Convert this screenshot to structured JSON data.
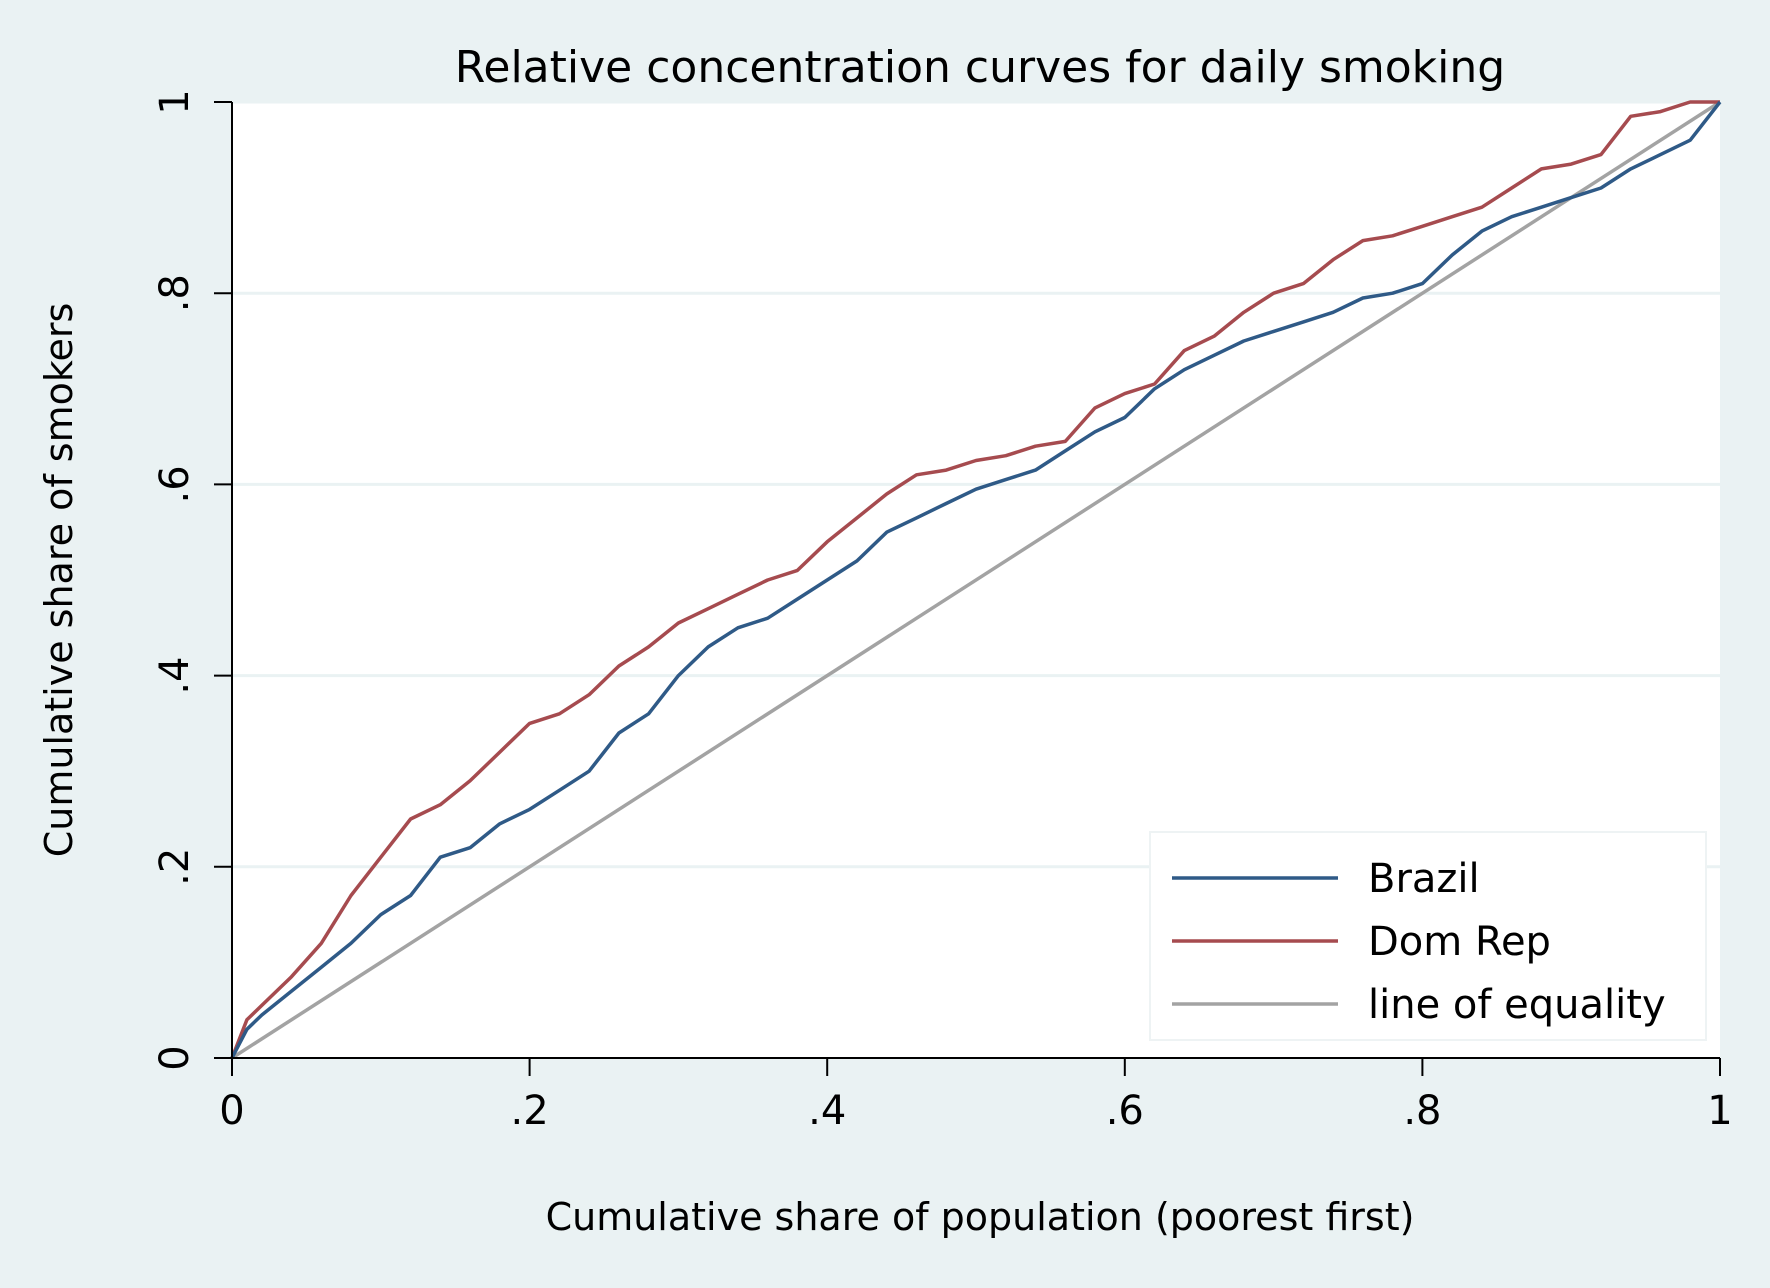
{
  "chart_data": {
    "type": "line",
    "title": "Relative concentration curves for daily smoking",
    "xlabel": "Cumulative share of population (poorest first)",
    "ylabel": "Cumulative share of smokers",
    "xlim": [
      0,
      1
    ],
    "ylim": [
      0,
      1
    ],
    "x_ticks": [
      {
        "value": 0,
        "label": "0"
      },
      {
        "value": 0.2,
        "label": ".2"
      },
      {
        "value": 0.4,
        "label": ".4"
      },
      {
        "value": 0.6,
        "label": ".6"
      },
      {
        "value": 0.8,
        "label": ".8"
      },
      {
        "value": 1,
        "label": "1"
      }
    ],
    "y_ticks": [
      {
        "value": 0,
        "label": "0"
      },
      {
        "value": 0.2,
        "label": ".2"
      },
      {
        "value": 0.4,
        "label": ".4"
      },
      {
        "value": 0.6,
        "label": ".6"
      },
      {
        "value": 0.8,
        "label": ".8"
      },
      {
        "value": 1,
        "label": "1"
      }
    ],
    "grid": "horizontal",
    "legend_position": "bottom-right",
    "series": [
      {
        "name": "Brazil",
        "color": "#2f5a87",
        "x": [
          0,
          0.01,
          0.02,
          0.04,
          0.06,
          0.08,
          0.1,
          0.12,
          0.14,
          0.16,
          0.18,
          0.2,
          0.22,
          0.24,
          0.26,
          0.28,
          0.3,
          0.32,
          0.34,
          0.36,
          0.38,
          0.4,
          0.42,
          0.44,
          0.46,
          0.48,
          0.5,
          0.52,
          0.54,
          0.56,
          0.58,
          0.6,
          0.62,
          0.64,
          0.66,
          0.68,
          0.7,
          0.72,
          0.74,
          0.76,
          0.78,
          0.8,
          0.82,
          0.84,
          0.86,
          0.88,
          0.9,
          0.92,
          0.94,
          0.96,
          0.98,
          1.0
        ],
        "y": [
          0,
          0.03,
          0.045,
          0.07,
          0.095,
          0.12,
          0.15,
          0.17,
          0.21,
          0.22,
          0.245,
          0.26,
          0.28,
          0.3,
          0.34,
          0.36,
          0.4,
          0.43,
          0.45,
          0.46,
          0.48,
          0.5,
          0.52,
          0.55,
          0.565,
          0.58,
          0.595,
          0.605,
          0.615,
          0.635,
          0.655,
          0.67,
          0.7,
          0.72,
          0.735,
          0.75,
          0.76,
          0.77,
          0.78,
          0.795,
          0.8,
          0.81,
          0.84,
          0.865,
          0.88,
          0.89,
          0.9,
          0.91,
          0.93,
          0.945,
          0.96,
          1.0
        ]
      },
      {
        "name": "Dom Rep",
        "color": "#a64b4f",
        "x": [
          0,
          0.01,
          0.02,
          0.04,
          0.06,
          0.08,
          0.1,
          0.12,
          0.14,
          0.16,
          0.18,
          0.2,
          0.22,
          0.24,
          0.26,
          0.28,
          0.3,
          0.32,
          0.34,
          0.36,
          0.38,
          0.4,
          0.42,
          0.44,
          0.46,
          0.48,
          0.5,
          0.52,
          0.54,
          0.56,
          0.58,
          0.6,
          0.62,
          0.64,
          0.66,
          0.68,
          0.7,
          0.72,
          0.74,
          0.76,
          0.78,
          0.8,
          0.82,
          0.84,
          0.86,
          0.88,
          0.9,
          0.92,
          0.94,
          0.96,
          0.98,
          1.0
        ],
        "y": [
          0,
          0.04,
          0.055,
          0.085,
          0.12,
          0.17,
          0.21,
          0.25,
          0.265,
          0.29,
          0.32,
          0.35,
          0.36,
          0.38,
          0.41,
          0.43,
          0.455,
          0.47,
          0.485,
          0.5,
          0.51,
          0.54,
          0.565,
          0.59,
          0.61,
          0.615,
          0.625,
          0.63,
          0.64,
          0.645,
          0.68,
          0.695,
          0.705,
          0.74,
          0.755,
          0.78,
          0.8,
          0.81,
          0.835,
          0.855,
          0.86,
          0.87,
          0.88,
          0.89,
          0.91,
          0.93,
          0.935,
          0.945,
          0.985,
          0.99,
          1.0,
          1.0
        ]
      },
      {
        "name": "line of equality",
        "color": "#a3a3a3",
        "x": [
          0,
          1
        ],
        "y": [
          0,
          1
        ]
      }
    ]
  }
}
